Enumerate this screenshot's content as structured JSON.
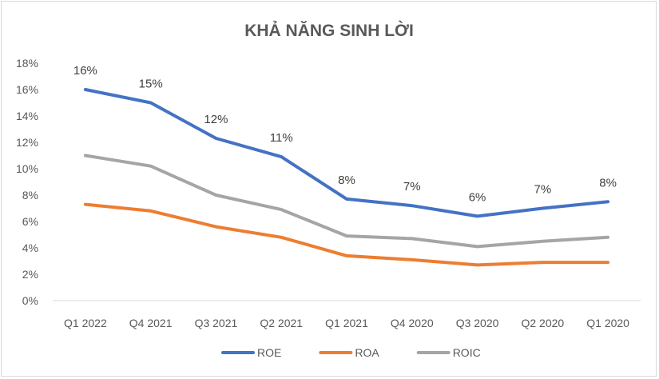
{
  "chart_data": {
    "type": "line",
    "title": "KHẢ NĂNG SINH LỜI",
    "categories": [
      "Q1 2022",
      "Q4 2021",
      "Q3 2021",
      "Q2 2021",
      "Q1 2021",
      "Q4 2020",
      "Q3 2020",
      "Q2 2020",
      "Q1 2020"
    ],
    "ylim": [
      0,
      18
    ],
    "ytick_labels": [
      "0%",
      "2%",
      "4%",
      "6%",
      "8%",
      "10%",
      "12%",
      "14%",
      "16%",
      "18%"
    ],
    "grid": false,
    "legend_position": "bottom",
    "series": [
      {
        "name": "ROE",
        "color": "#4472C4",
        "values": [
          16.0,
          15.0,
          12.3,
          10.9,
          7.7,
          7.2,
          6.4,
          7.0,
          7.5
        ],
        "data_labels": [
          "16%",
          "15%",
          "12%",
          "11%",
          "8%",
          "7%",
          "6%",
          "7%",
          "8%"
        ]
      },
      {
        "name": "ROA",
        "color": "#ED7D31",
        "values": [
          7.3,
          6.8,
          5.6,
          4.8,
          3.4,
          3.1,
          2.7,
          2.9,
          2.9
        ]
      },
      {
        "name": "ROIC",
        "color": "#A5A5A5",
        "values": [
          11.0,
          10.2,
          8.0,
          6.9,
          4.9,
          4.7,
          4.1,
          4.5,
          4.8
        ]
      }
    ]
  }
}
